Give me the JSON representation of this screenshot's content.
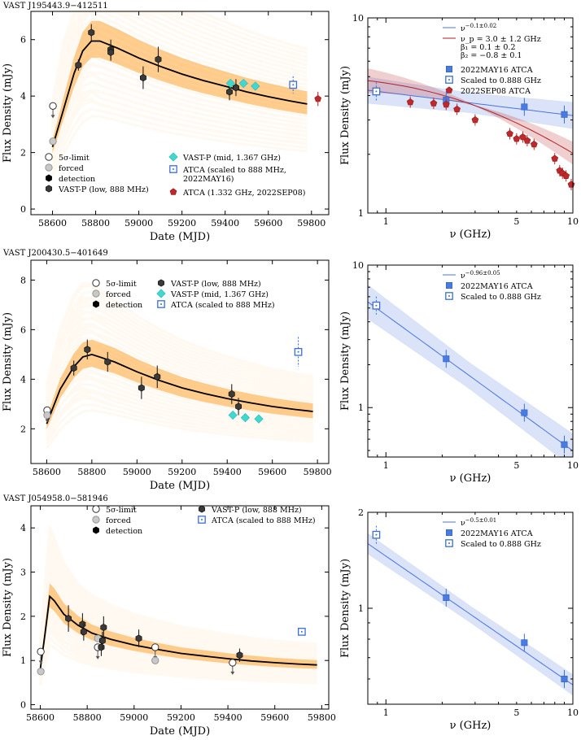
{
  "sources": [
    {
      "name": "VAST J195443.9−412511"
    },
    {
      "name": "VAST J200430.5−401649"
    },
    {
      "name": "VAST J054958.0−581946"
    }
  ],
  "chart_data": [
    {
      "type": "scatter",
      "panel": "lightcurve-1",
      "xlabel": "Date (MJD)",
      "ylabel": "Flux Density (mJy)",
      "xlim": [
        58500,
        59880
      ],
      "ylim": [
        -0.2,
        7.0
      ],
      "xticks": [
        58600,
        58800,
        59000,
        59200,
        59400,
        59600,
        59800
      ],
      "yticks": [
        0,
        2,
        4,
        6
      ],
      "model_curve": [
        [
          58600,
          2.2
        ],
        [
          58650,
          3.5
        ],
        [
          58700,
          4.8
        ],
        [
          58740,
          5.6
        ],
        [
          58780,
          5.95
        ],
        [
          58820,
          5.95
        ],
        [
          58900,
          5.7
        ],
        [
          59000,
          5.35
        ],
        [
          59100,
          5.05
        ],
        [
          59200,
          4.78
        ],
        [
          59300,
          4.55
        ],
        [
          59400,
          4.35
        ],
        [
          59500,
          4.15
        ],
        [
          59600,
          3.98
        ],
        [
          59700,
          3.83
        ],
        [
          59780,
          3.72
        ]
      ],
      "series": [
        {
          "name": "5σ-limit",
          "marker": "open-circle",
          "points": [
            [
              58602,
              3.65
            ]
          ]
        },
        {
          "name": "forced",
          "marker": "grey-circle",
          "points": [
            [
              58602,
              2.4
            ]
          ]
        },
        {
          "name": "detection",
          "marker": "black-hexagon",
          "points": []
        },
        {
          "name": "VAST-P (low, 888 MHz)",
          "marker": "dark-hexagon",
          "points": [
            [
              58720,
              5.1,
              0.2
            ],
            [
              58780,
              6.25,
              0.3
            ],
            [
              58870,
              5.65,
              0.35
            ],
            [
              59020,
              4.65,
              0.4
            ],
            [
              59090,
              5.3,
              0.45
            ],
            [
              59420,
              4.15,
              0.3
            ],
            [
              59450,
              4.3,
              0.3
            ],
            [
              58870,
              5.55,
              0.3
            ]
          ]
        },
        {
          "name": "VAST-P (mid, 1.367 GHz)",
          "marker": "cyan-diamond",
          "points": [
            [
              59425,
              4.45
            ],
            [
              59485,
              4.45
            ],
            [
              59540,
              4.35
            ]
          ]
        },
        {
          "name": "ATCA (scaled to 888 MHz,\n2022MAY16)",
          "marker": "blue-open-square",
          "points": [
            [
              59715,
              4.4,
              0.3
            ]
          ]
        },
        {
          "name": "ATCA (1.332 GHz, 2022SEP08)",
          "marker": "red-pentagon",
          "points": [
            [
              59830,
              3.9,
              0.25
            ]
          ]
        }
      ]
    },
    {
      "type": "scatter",
      "panel": "sed-1",
      "xlabel": "ν (GHz)",
      "ylabel": "Flux Density (mJy)",
      "xscale": "log",
      "yscale": "log",
      "xlim": [
        0.8,
        10
      ],
      "ylim": [
        1,
        10
      ],
      "xticks": [
        1,
        5,
        10
      ],
      "yticks": [
        1,
        10
      ],
      "legend": [
        "ν^−0.1±0.02",
        "ν_p = 3.0 ± 1.2 GHz",
        "β₁ = 0.1 ± 0.2",
        "β₂ = −0.8 ± 0.1",
        "2022MAY16 ATCA",
        "Scaled to 0.888 GHz",
        "2022SEP08 ATCA"
      ],
      "series": [
        {
          "name": "2022MAY16 ATCA",
          "marker": "blue-square",
          "points": [
            [
              2.1,
              3.8
            ],
            [
              5.5,
              3.5
            ],
            [
              9.0,
              3.2
            ]
          ]
        },
        {
          "name": "Scaled to 0.888 GHz",
          "marker": "blue-open-square",
          "points": [
            [
              0.888,
              4.2
            ]
          ]
        },
        {
          "name": "2022SEP08 ATCA",
          "marker": "red-pentagon",
          "points": [
            [
              1.35,
              3.7
            ],
            [
              1.8,
              3.65
            ],
            [
              2.1,
              3.6
            ],
            [
              2.4,
              3.4
            ],
            [
              3.0,
              3.0
            ],
            [
              4.6,
              2.55
            ],
            [
              5.0,
              2.4
            ],
            [
              5.4,
              2.45
            ],
            [
              5.7,
              2.35
            ],
            [
              6.2,
              2.25
            ],
            [
              8.0,
              1.9
            ],
            [
              8.5,
              1.65
            ],
            [
              8.8,
              1.6
            ],
            [
              9.2,
              1.55
            ],
            [
              9.8,
              1.4
            ]
          ]
        }
      ]
    },
    {
      "type": "scatter",
      "panel": "lightcurve-2",
      "xlabel": "Date (MJD)",
      "ylabel": "Flux Density (mJy)",
      "xlim": [
        58530,
        59850
      ],
      "ylim": [
        0.6,
        8.8
      ],
      "xticks": [
        58600,
        58800,
        59000,
        59200,
        59400,
        59600,
        59800
      ],
      "yticks": [
        2,
        4,
        6,
        8
      ],
      "model_curve": [
        [
          58600,
          2.2
        ],
        [
          58660,
          3.6
        ],
        [
          58720,
          4.5
        ],
        [
          58760,
          4.9
        ],
        [
          58800,
          5.0
        ],
        [
          58900,
          4.7
        ],
        [
          59000,
          4.3
        ],
        [
          59100,
          3.95
        ],
        [
          59200,
          3.65
        ],
        [
          59300,
          3.42
        ],
        [
          59400,
          3.22
        ],
        [
          59500,
          3.05
        ],
        [
          59600,
          2.9
        ],
        [
          59700,
          2.78
        ],
        [
          59780,
          2.7
        ]
      ],
      "series": [
        {
          "name": "5σ-limit",
          "marker": "open-circle",
          "points": [
            [
              58602,
              2.75
            ]
          ]
        },
        {
          "name": "forced",
          "marker": "grey-circle",
          "points": [
            [
              58602,
              2.55
            ]
          ]
        },
        {
          "name": "detection",
          "marker": "black-hexagon",
          "points": []
        },
        {
          "name": "VAST-P (low, 888 MHz)",
          "marker": "dark-hexagon",
          "points": [
            [
              58720,
              4.45,
              0.3
            ],
            [
              58780,
              5.2,
              0.4
            ],
            [
              58870,
              4.7,
              0.4
            ],
            [
              59020,
              3.65,
              0.45
            ],
            [
              59090,
              4.1,
              0.45
            ],
            [
              59420,
              3.4,
              0.4
            ],
            [
              59450,
              2.9,
              0.35
            ]
          ]
        },
        {
          "name": "VAST-P (mid, 1.367 GHz)",
          "marker": "cyan-diamond",
          "points": [
            [
              59425,
              2.55
            ],
            [
              59480,
              2.45
            ],
            [
              59540,
              2.4
            ]
          ]
        },
        {
          "name": "ATCA (scaled to 888 MHz)",
          "marker": "blue-open-square",
          "points": [
            [
              59715,
              5.1,
              0.6
            ]
          ]
        }
      ]
    },
    {
      "type": "scatter",
      "panel": "sed-2",
      "xlabel": "ν (GHz)",
      "ylabel": "Flux Density (mJy)",
      "xscale": "log",
      "yscale": "log",
      "xlim": [
        0.8,
        10
      ],
      "ylim": [
        0.45,
        10
      ],
      "xticks": [
        1,
        5,
        10
      ],
      "yticks": [
        1,
        10
      ],
      "legend": [
        "ν^−0.96±0.05",
        "2022MAY16 ATCA",
        "Scaled to 0.888 GHz"
      ],
      "series": [
        {
          "name": "2022MAY16 ATCA",
          "marker": "blue-square",
          "points": [
            [
              2.1,
              2.2
            ],
            [
              5.5,
              0.92
            ],
            [
              9.0,
              0.55
            ]
          ]
        },
        {
          "name": "Scaled to 0.888 GHz",
          "marker": "blue-open-square",
          "points": [
            [
              0.888,
              5.2
            ]
          ]
        }
      ]
    },
    {
      "type": "scatter",
      "panel": "lightcurve-3",
      "xlabel": "Date (MJD)",
      "ylabel": "Flux Density (mJy)",
      "xlim": [
        58560,
        59830
      ],
      "ylim": [
        -0.1,
        4.5
      ],
      "xticks": [
        58600,
        58800,
        59000,
        59200,
        59400,
        59600,
        59800
      ],
      "yticks": [
        0,
        1,
        2,
        3,
        4
      ],
      "model_curve": [
        [
          58600,
          0.8
        ],
        [
          58620,
          1.6
        ],
        [
          58640,
          2.45
        ],
        [
          58660,
          2.35
        ],
        [
          58700,
          2.05
        ],
        [
          58760,
          1.8
        ],
        [
          58820,
          1.62
        ],
        [
          58900,
          1.48
        ],
        [
          59000,
          1.35
        ],
        [
          59100,
          1.25
        ],
        [
          59200,
          1.16
        ],
        [
          59300,
          1.1
        ],
        [
          59400,
          1.04
        ],
        [
          59500,
          0.99
        ],
        [
          59600,
          0.95
        ],
        [
          59700,
          0.92
        ],
        [
          59780,
          0.9
        ]
      ],
      "series": [
        {
          "name": "5σ-limit",
          "marker": "open-circle",
          "points": [
            [
              58602,
              1.2
            ],
            [
              58845,
              1.3
            ],
            [
              59090,
              1.3
            ],
            [
              59420,
              0.95
            ]
          ]
        },
        {
          "name": "forced",
          "marker": "grey-circle",
          "points": [
            [
              58602,
              0.75
            ],
            [
              58845,
              1.5
            ],
            [
              59090,
              1.0
            ]
          ]
        },
        {
          "name": "detection",
          "marker": "black-hexagon",
          "points": []
        },
        {
          "name": "VAST-P (low, 888 MHz)",
          "marker": "dark-hexagon",
          "points": [
            [
              58720,
              1.95,
              0.3
            ],
            [
              58780,
              1.82,
              0.25
            ],
            [
              58785,
              1.65,
              0.2
            ],
            [
              58860,
              1.3,
              0.2
            ],
            [
              58865,
              1.45,
              0.2
            ],
            [
              58870,
              1.75,
              0.25
            ],
            [
              59020,
              1.5,
              0.2
            ],
            [
              59450,
              1.12,
              0.15
            ]
          ]
        },
        {
          "name": "ATCA (scaled to 888 MHz)",
          "marker": "blue-open-square",
          "points": [
            [
              59715,
              1.65,
              0.05
            ]
          ]
        }
      ]
    },
    {
      "type": "scatter",
      "panel": "sed-3",
      "xlabel": "ν (GHz)",
      "ylabel": "Flux Density (mJy)",
      "xscale": "log",
      "yscale": "log",
      "xlim": [
        0.8,
        10
      ],
      "ylim": [
        0.5,
        2.0
      ],
      "xticks": [
        1,
        5,
        10
      ],
      "yticks": [
        1,
        2
      ],
      "legend": [
        "ν^−0.5±0.01",
        "2022MAY16 ATCA",
        "Scaled to 0.888 GHz"
      ],
      "series": [
        {
          "name": "2022MAY16 ATCA",
          "marker": "blue-square",
          "points": [
            [
              2.1,
              1.08
            ],
            [
              5.5,
              0.78
            ],
            [
              9.0,
              0.6
            ]
          ]
        },
        {
          "name": "Scaled to 0.888 GHz",
          "marker": "blue-open-square",
          "points": [
            [
              0.888,
              1.7
            ]
          ]
        }
      ]
    }
  ]
}
